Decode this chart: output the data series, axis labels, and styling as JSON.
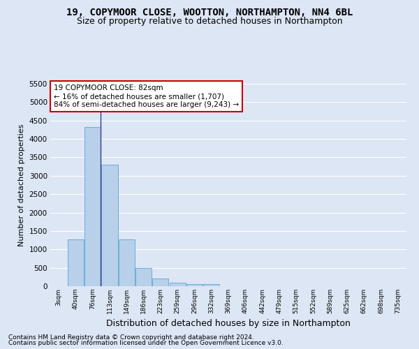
{
  "title1": "19, COPYMOOR CLOSE, WOOTTON, NORTHAMPTON, NN4 6BL",
  "title2": "Size of property relative to detached houses in Northampton",
  "xlabel": "Distribution of detached houses by size in Northampton",
  "ylabel": "Number of detached properties",
  "footnote1": "Contains HM Land Registry data © Crown copyright and database right 2024.",
  "footnote2": "Contains public sector information licensed under the Open Government Licence v3.0.",
  "bar_labels": [
    "3sqm",
    "40sqm",
    "76sqm",
    "113sqm",
    "149sqm",
    "186sqm",
    "223sqm",
    "259sqm",
    "296sqm",
    "332sqm",
    "369sqm",
    "406sqm",
    "442sqm",
    "479sqm",
    "515sqm",
    "552sqm",
    "589sqm",
    "625sqm",
    "662sqm",
    "698sqm",
    "735sqm"
  ],
  "bar_values": [
    0,
    1270,
    4330,
    3300,
    1280,
    490,
    215,
    90,
    60,
    55,
    0,
    0,
    0,
    0,
    0,
    0,
    0,
    0,
    0,
    0,
    0
  ],
  "bar_color": "#b8d0ea",
  "bar_edge_color": "#6aaed6",
  "vline_color": "#3a3a8c",
  "annotation_text": "19 COPYMOOR CLOSE: 82sqm\n← 16% of detached houses are smaller (1,707)\n84% of semi-detached houses are larger (9,243) →",
  "annotation_box_facecolor": "#ffffff",
  "annotation_box_edgecolor": "#cc0000",
  "ylim": [
    0,
    5500
  ],
  "yticks": [
    0,
    500,
    1000,
    1500,
    2000,
    2500,
    3000,
    3500,
    4000,
    4500,
    5000,
    5500
  ],
  "background_color": "#dce6f5",
  "grid_color": "#ffffff",
  "title1_fontsize": 10,
  "title2_fontsize": 9,
  "xlabel_fontsize": 9,
  "ylabel_fontsize": 8,
  "footnote_fontsize": 6.5
}
